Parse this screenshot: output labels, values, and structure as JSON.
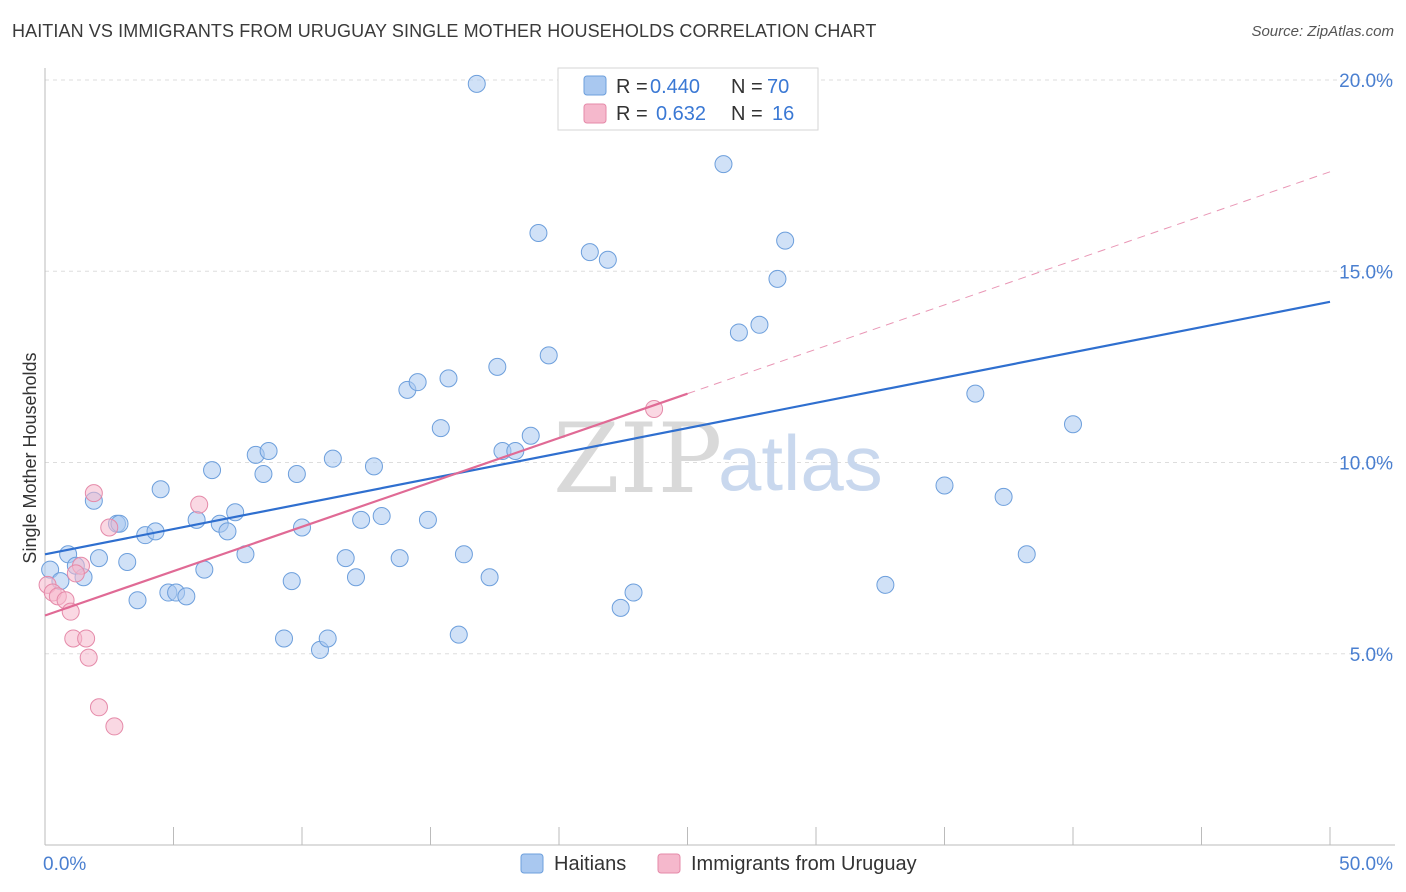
{
  "title": "HAITIAN VS IMMIGRANTS FROM URUGUAY SINGLE MOTHER HOUSEHOLDS CORRELATION CHART",
  "source": "Source: ZipAtlas.com",
  "colors": {
    "blue": "#a9c8f0",
    "blue_stroke": "#6d9fdc",
    "blue_line": "#2f6fcf",
    "pink": "#f5b8cc",
    "pink_stroke": "#e58aa9",
    "pink_line": "#e06a95",
    "tick_text": "#4a7fd0",
    "grid": "#dddddd"
  },
  "legend": {
    "rows": [
      {
        "r_label": "R =",
        "r_value": "0.440",
        "n_label": "N =",
        "n_value": "70"
      },
      {
        "r_label": "R =",
        "r_value": "0.632",
        "n_label": "N =",
        "n_value": "16"
      }
    ]
  },
  "bottom_legend": [
    "Haitians",
    "Immigrants from Uruguay"
  ],
  "watermark": {
    "zip": "ZIP",
    "atlas": "atlas"
  },
  "chart_data": {
    "type": "scatter",
    "xlabel": "",
    "ylabel": "Single Mother Households",
    "xlim": [
      0,
      50
    ],
    "ylim": [
      0,
      20
    ],
    "x_tick_labels": [
      {
        "value": 0,
        "label": "0.0%"
      },
      {
        "value": 50,
        "label": "50.0%"
      }
    ],
    "y_tick_labels": [
      {
        "value": 5,
        "label": "5.0%"
      },
      {
        "value": 10,
        "label": "10.0%"
      },
      {
        "value": 15,
        "label": "15.0%"
      },
      {
        "value": 20,
        "label": "20.0%"
      }
    ],
    "grid": true,
    "legend_position": "top-center",
    "series": [
      {
        "name": "Haitians",
        "points": [
          [
            0.2,
            7.2
          ],
          [
            0.6,
            6.9
          ],
          [
            0.9,
            7.6
          ],
          [
            1.2,
            7.3
          ],
          [
            1.5,
            7.0
          ],
          [
            1.9,
            9.0
          ],
          [
            2.1,
            7.5
          ],
          [
            2.8,
            8.4
          ],
          [
            2.9,
            8.4
          ],
          [
            3.2,
            7.4
          ],
          [
            3.6,
            6.4
          ],
          [
            3.9,
            8.1
          ],
          [
            4.3,
            8.2
          ],
          [
            4.5,
            9.3
          ],
          [
            4.8,
            6.6
          ],
          [
            5.1,
            6.6
          ],
          [
            5.5,
            6.5
          ],
          [
            5.9,
            8.5
          ],
          [
            6.2,
            7.2
          ],
          [
            6.5,
            9.8
          ],
          [
            6.8,
            8.4
          ],
          [
            7.1,
            8.2
          ],
          [
            7.4,
            8.7
          ],
          [
            7.8,
            7.6
          ],
          [
            8.2,
            10.2
          ],
          [
            8.5,
            9.7
          ],
          [
            8.7,
            10.3
          ],
          [
            9.3,
            5.4
          ],
          [
            9.6,
            6.9
          ],
          [
            9.8,
            9.7
          ],
          [
            10.0,
            8.3
          ],
          [
            10.7,
            5.1
          ],
          [
            11.0,
            5.4
          ],
          [
            11.2,
            10.1
          ],
          [
            11.7,
            7.5
          ],
          [
            12.1,
            7.0
          ],
          [
            12.3,
            8.5
          ],
          [
            12.8,
            9.9
          ],
          [
            13.1,
            8.6
          ],
          [
            13.8,
            7.5
          ],
          [
            14.1,
            11.9
          ],
          [
            14.5,
            12.1
          ],
          [
            14.9,
            8.5
          ],
          [
            15.4,
            10.9
          ],
          [
            15.7,
            12.2
          ],
          [
            16.1,
            5.5
          ],
          [
            16.3,
            7.6
          ],
          [
            16.8,
            19.9
          ],
          [
            17.3,
            7.0
          ],
          [
            17.6,
            12.5
          ],
          [
            17.8,
            10.3
          ],
          [
            18.3,
            10.3
          ],
          [
            18.9,
            10.7
          ],
          [
            19.2,
            16.0
          ],
          [
            19.6,
            12.8
          ],
          [
            21.2,
            15.5
          ],
          [
            21.9,
            15.3
          ],
          [
            22.4,
            6.2
          ],
          [
            22.9,
            6.6
          ],
          [
            26.4,
            17.8
          ],
          [
            27.0,
            13.4
          ],
          [
            27.8,
            13.6
          ],
          [
            28.5,
            14.8
          ],
          [
            28.8,
            15.8
          ],
          [
            32.7,
            6.8
          ],
          [
            35.0,
            9.4
          ],
          [
            36.2,
            11.8
          ],
          [
            37.3,
            9.1
          ],
          [
            38.2,
            7.6
          ],
          [
            40.0,
            11.0
          ]
        ]
      },
      {
        "name": "Immigrants from Uruguay",
        "points": [
          [
            0.1,
            6.8
          ],
          [
            0.3,
            6.6
          ],
          [
            0.5,
            6.5
          ],
          [
            0.8,
            6.4
          ],
          [
            1.0,
            6.1
          ],
          [
            1.1,
            5.4
          ],
          [
            1.4,
            7.3
          ],
          [
            1.6,
            5.4
          ],
          [
            1.7,
            4.9
          ],
          [
            1.9,
            9.2
          ],
          [
            2.1,
            3.6
          ],
          [
            2.5,
            8.3
          ],
          [
            2.7,
            3.1
          ],
          [
            6.0,
            8.9
          ],
          [
            23.7,
            11.4
          ],
          [
            1.2,
            7.1
          ]
        ]
      }
    ],
    "trend_lines": [
      {
        "name": "Haitians",
        "x": [
          0,
          50
        ],
        "y": [
          7.6,
          14.2
        ],
        "style": "solid"
      },
      {
        "name": "Immigrants from Uruguay",
        "x": [
          0,
          25
        ],
        "y": [
          6.0,
          11.8
        ],
        "style": "solid"
      },
      {
        "name": "Immigrants from Uruguay",
        "x": [
          25,
          50
        ],
        "y": [
          11.8,
          17.6
        ],
        "style": "dashed"
      }
    ]
  }
}
